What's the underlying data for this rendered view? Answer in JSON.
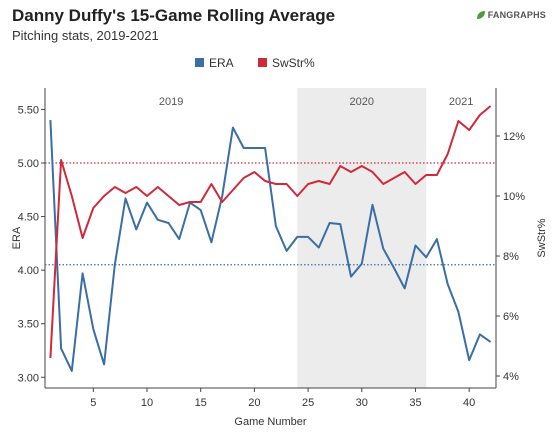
{
  "header": {
    "title": "Danny Duffy's 15-Game Rolling Average",
    "subtitle": "Pitching stats, 2019-2021",
    "logo_text": "FANGRAPHS"
  },
  "colors": {
    "era": "#3a6ea5",
    "swstr": "#d02a3a",
    "shade": "#ececec",
    "axis": "#444444"
  },
  "chart_data": {
    "type": "line",
    "title": "Danny Duffy's 15-Game Rolling Average",
    "subtitle": "Pitching stats, 2019-2021",
    "xlabel": "Game Number",
    "ylabel": "ERA",
    "y2label": "SwStr%",
    "xlim": [
      0.5,
      42.5
    ],
    "ylim": [
      2.9,
      5.7
    ],
    "y2lim": [
      3.6,
      13.6
    ],
    "x_ticks": [
      5,
      10,
      15,
      20,
      25,
      30,
      35,
      40
    ],
    "y_ticks": [
      3.0,
      3.5,
      4.0,
      4.5,
      5.0,
      5.5
    ],
    "y_tick_labels": [
      "3.00",
      "3.50",
      "4.00",
      "4.50",
      "5.00",
      "5.50"
    ],
    "y2_ticks": [
      4,
      6,
      8,
      10,
      12
    ],
    "y2_tick_labels": [
      "4%",
      "6%",
      "8%",
      "10%",
      "12%"
    ],
    "legend": {
      "placement": "top-center",
      "entries": [
        "ERA",
        "SwStr%"
      ]
    },
    "seasons": [
      {
        "label": "2019",
        "start": 0.5,
        "end": 24,
        "shaded": false
      },
      {
        "label": "2020",
        "start": 24,
        "end": 36,
        "shaded": true
      },
      {
        "label": "2021",
        "start": 36,
        "end": 42.5,
        "shaded": false
      }
    ],
    "series": [
      {
        "name": "ERA",
        "axis": "left",
        "x": [
          1,
          2,
          3,
          4,
          5,
          6,
          7,
          8,
          9,
          10,
          11,
          12,
          13,
          14,
          15,
          16,
          17,
          18,
          19,
          20,
          21,
          22,
          23,
          24,
          25,
          26,
          27,
          28,
          29,
          30,
          31,
          32,
          33,
          34,
          35,
          36,
          37,
          38,
          39,
          40,
          41,
          42
        ],
        "values": [
          5.4,
          3.27,
          3.06,
          3.97,
          3.45,
          3.12,
          4.05,
          4.67,
          4.38,
          4.63,
          4.47,
          4.44,
          4.29,
          4.63,
          4.56,
          4.26,
          4.69,
          5.33,
          5.14,
          5.14,
          5.14,
          4.41,
          4.18,
          4.31,
          4.31,
          4.21,
          4.44,
          4.43,
          3.94,
          4.06,
          4.61,
          4.2,
          4.02,
          3.83,
          4.23,
          4.12,
          4.29,
          3.87,
          3.61,
          3.16,
          3.4,
          3.33
        ]
      },
      {
        "name": "SwStr%",
        "axis": "right",
        "x": [
          1,
          2,
          3,
          4,
          5,
          6,
          7,
          8,
          9,
          10,
          11,
          12,
          13,
          14,
          15,
          16,
          17,
          18,
          19,
          20,
          21,
          22,
          23,
          24,
          25,
          26,
          27,
          28,
          29,
          30,
          31,
          32,
          33,
          34,
          35,
          36,
          37,
          38,
          39,
          40,
          41,
          42
        ],
        "values": [
          4.6,
          11.2,
          10.0,
          8.6,
          9.6,
          10.0,
          10.3,
          10.1,
          10.3,
          10.0,
          10.3,
          10.0,
          9.7,
          9.8,
          9.8,
          10.4,
          9.8,
          10.2,
          10.6,
          10.8,
          10.5,
          10.4,
          10.4,
          10.0,
          10.4,
          10.5,
          10.4,
          11.0,
          10.8,
          11.0,
          10.8,
          10.4,
          10.6,
          10.8,
          10.4,
          10.7,
          10.7,
          11.4,
          12.5,
          12.2,
          12.7,
          13.0
        ]
      }
    ],
    "reference_lines": [
      {
        "series": "ERA",
        "axis": "left",
        "value": 4.05,
        "style": "dotted"
      },
      {
        "series": "SwStr%",
        "axis": "right",
        "value": 11.1,
        "style": "dotted"
      }
    ]
  }
}
